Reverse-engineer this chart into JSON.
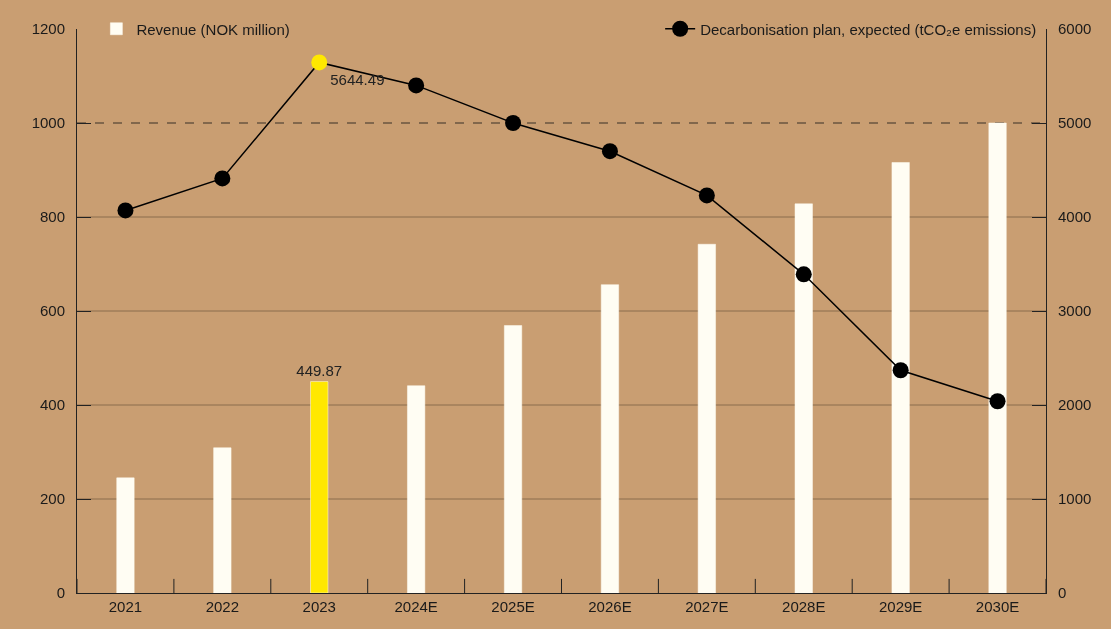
{
  "chart_data": {
    "type": "bar",
    "categories": [
      "2021",
      "2022",
      "2023",
      "2024E",
      "2025E",
      "2026E",
      "2027E",
      "2028E",
      "2029E",
      "2030E"
    ],
    "series": [
      {
        "name": "Revenue (NOK million)",
        "color": "#fffdf3",
        "colors": [
          "#fffdf3",
          "#fffdf3",
          "#ffe800",
          "#fffdf3",
          "#fffdf3",
          "#fffdf3",
          "#fffdf3",
          "#fffdf3",
          "#fffdf3",
          "#fffdf3"
        ],
        "values": [
          245,
          309,
          449.87,
          441,
          569,
          656,
          742,
          828,
          916,
          1000
        ],
        "value_labels": [
          null,
          null,
          "449.87",
          null,
          null,
          null,
          null,
          null,
          null,
          null
        ]
      },
      {
        "name": "Decarbonisation plan, expected (tCO₂e emissions)",
        "type": "line",
        "axis": "y2",
        "color": "#000000",
        "colors": [
          "#000000",
          "#000000",
          "#ffe800",
          "#000000",
          "#000000",
          "#000000",
          "#000000",
          "#000000",
          "#000000",
          "#000000"
        ],
        "values": [
          4070,
          4410,
          5644.49,
          5400,
          5000,
          4700,
          4230,
          3390,
          2370,
          2040
        ],
        "value_labels": [
          null,
          null,
          "5644.49",
          null,
          null,
          null,
          null,
          null,
          null,
          null
        ]
      }
    ],
    "ylim": [
      0,
      1200
    ],
    "yticks": [
      0,
      200,
      400,
      600,
      800,
      1000,
      1200
    ],
    "y2lim": [
      0,
      6000
    ],
    "y2ticks": [
      0,
      1000,
      2000,
      3000,
      4000,
      5000,
      6000
    ],
    "ref_lines": [
      {
        "axis": "y",
        "value": 1000,
        "color": "#3a3027",
        "line_style": "dashed"
      }
    ],
    "grid": "y",
    "legend": "top",
    "marker": "circle",
    "line_style": "solid"
  }
}
